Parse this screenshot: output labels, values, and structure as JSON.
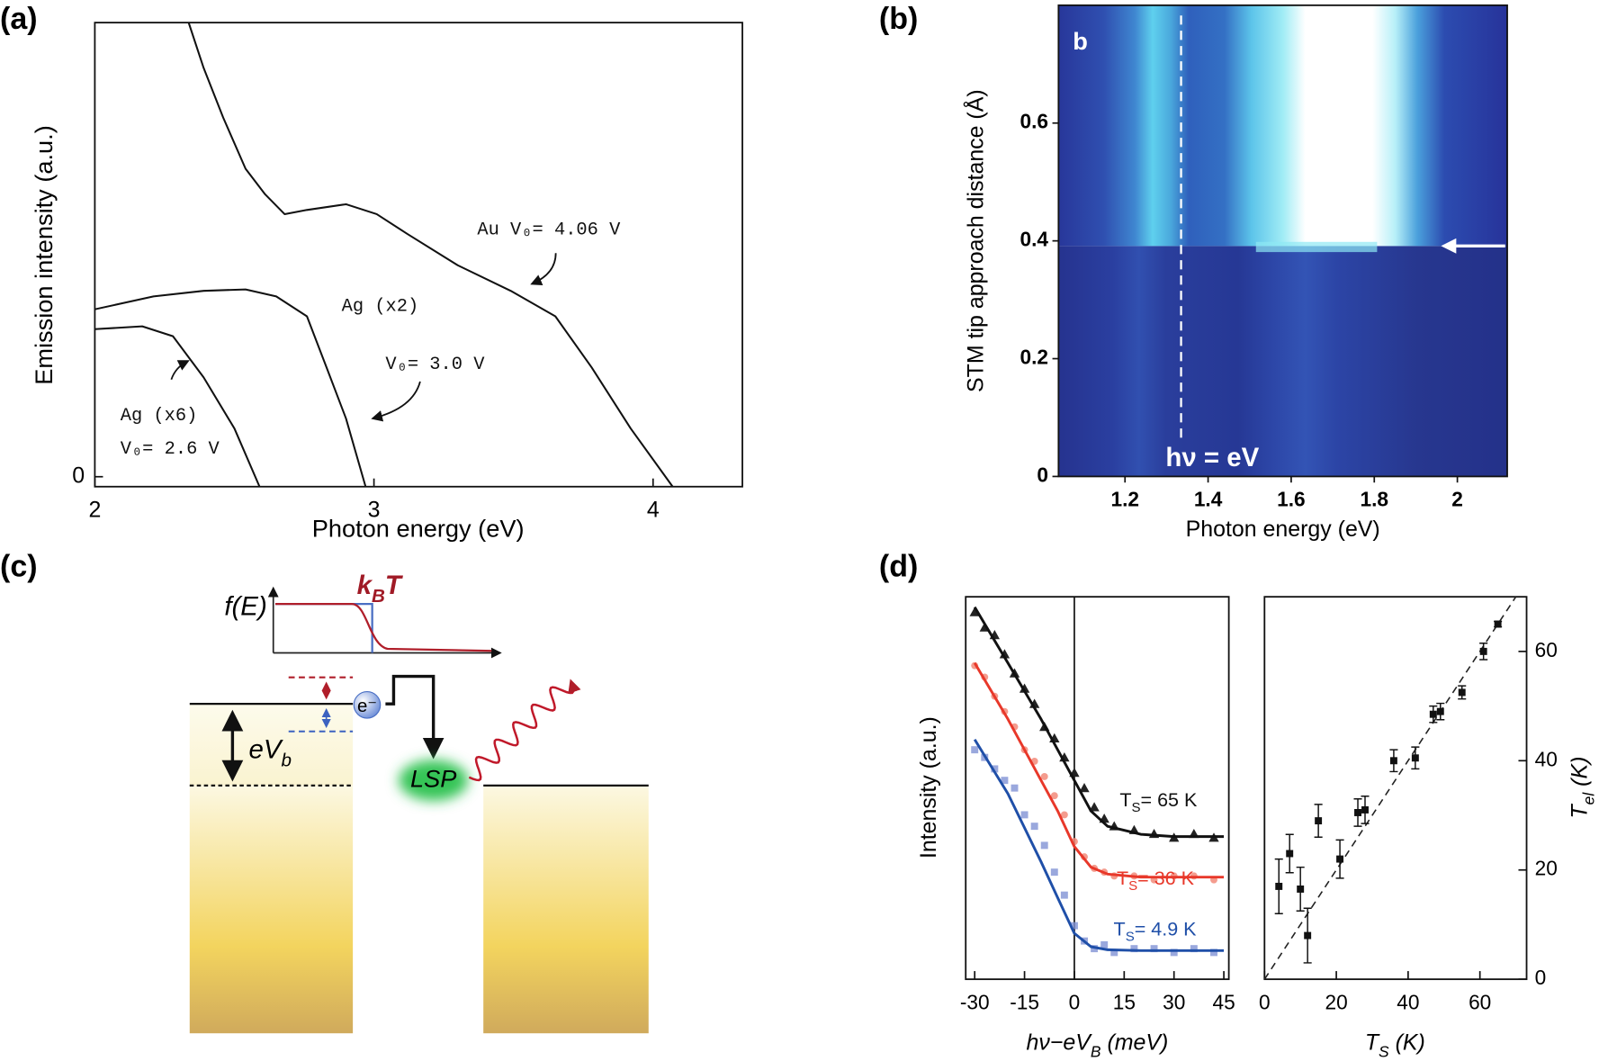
{
  "panel_labels": [
    "(a)",
    "(b)",
    "(c)",
    "(d)"
  ],
  "chart_data": [
    {
      "type": "line",
      "xlabel": "Photon energy (eV)",
      "ylabel": "Emission intensity (a.u.)",
      "xlim": [
        2,
        4.32
      ],
      "xticks": [
        2,
        3,
        4
      ],
      "ylim": [
        -0.07,
        3.2
      ],
      "yticks": [
        0
      ],
      "annotations": [
        "Au  V₀= 4.06 V",
        "Ag (x2)",
        "V₀= 3.0 V",
        "Ag (x6)",
        "V₀= 2.6 V"
      ],
      "series": [
        {
          "color": "#111111",
          "x": [
            2.336,
            2.39,
            2.46,
            2.54,
            2.61,
            2.68,
            2.76,
            2.9,
            3.01,
            3.12,
            3.3,
            3.49,
            3.65,
            3.78,
            3.92,
            4.07
          ],
          "values": [
            3.2,
            2.88,
            2.53,
            2.17,
            1.99,
            1.85,
            1.88,
            1.92,
            1.85,
            1.71,
            1.49,
            1.31,
            1.13,
            0.77,
            0.34,
            -0.07
          ]
        },
        {
          "color": "#111111",
          "x": [
            2,
            2.21,
            2.39,
            2.54,
            2.65,
            2.76,
            2.83,
            2.9,
            2.97
          ],
          "values": [
            1.18,
            1.27,
            1.31,
            1.32,
            1.27,
            1.13,
            0.77,
            0.41,
            -0.07
          ]
        },
        {
          "color": "#111111",
          "x": [
            2,
            2.17,
            2.28,
            2.39,
            2.5,
            2.59
          ],
          "values": [
            1.04,
            1.06,
            0.99,
            0.7,
            0.34,
            -0.07
          ]
        }
      ]
    },
    {
      "type": "heatmap",
      "xlabel": "Photon energy (eV)",
      "ylabel": "STM tip approach distance (Å)",
      "xlim": [
        1.04,
        2.12
      ],
      "xticks": [
        1.2,
        1.4,
        1.6,
        1.8,
        2
      ],
      "ylim": [
        0,
        0.8
      ],
      "yticks": [
        0,
        0.2,
        0.4,
        0.6
      ],
      "vline_x": 1.335,
      "annotations": [
        "b",
        "hν = eV"
      ]
    },
    {
      "type": "line",
      "xlabel": [
        "hν−eV",
        "B",
        " (meV)"
      ],
      "ylabel": "Intensity (a.u.)",
      "xlim": [
        -32.7,
        46.5
      ],
      "xticks": [
        -30,
        -15,
        0,
        15,
        30,
        45
      ],
      "ylim": [
        0,
        1
      ],
      "vline_x": 0,
      "annotations": [
        [
          "T",
          "S",
          "= 65 K"
        ],
        [
          "T",
          "S",
          "= 36 K"
        ],
        [
          "T",
          "S",
          "= 4.9 K"
        ]
      ],
      "series": [
        {
          "color": "#222222",
          "marker": "triangle",
          "x": [
            -30,
            -27,
            -24,
            -21,
            -18,
            -15,
            -12,
            -9,
            -6,
            -3,
            0,
            3,
            6,
            9,
            12,
            18,
            24,
            30,
            36,
            42
          ],
          "values": [
            0.96,
            0.92,
            0.9,
            0.85,
            0.8,
            0.76,
            0.72,
            0.66,
            0.63,
            0.58,
            0.54,
            0.5,
            0.45,
            0.42,
            0.4,
            0.39,
            0.38,
            0.37,
            0.38,
            0.37
          ]
        },
        {
          "color": "#f28b7a",
          "marker": "circle",
          "x": [
            -30,
            -27,
            -24,
            -21,
            -18,
            -15,
            -12,
            -9,
            -6,
            -3,
            0,
            3,
            6,
            9,
            12,
            18,
            24,
            30,
            36,
            42
          ],
          "values": [
            0.82,
            0.79,
            0.74,
            0.7,
            0.66,
            0.6,
            0.57,
            0.53,
            0.48,
            0.43,
            0.36,
            0.32,
            0.29,
            0.28,
            0.27,
            0.27,
            0.26,
            0.27,
            0.27,
            0.26
          ]
        },
        {
          "color": "#8192d4",
          "marker": "square",
          "x": [
            -30,
            -27,
            -24,
            -21,
            -18,
            -15,
            -12,
            -9,
            -6,
            -3,
            0,
            3,
            6,
            9,
            12,
            18,
            24,
            30,
            36,
            42
          ],
          "values": [
            0.6,
            0.58,
            0.55,
            0.52,
            0.5,
            0.43,
            0.4,
            0.35,
            0.28,
            0.22,
            0.14,
            0.1,
            0.08,
            0.09,
            0.07,
            0.08,
            0.08,
            0.07,
            0.08,
            0.07
          ]
        },
        {
          "color": "#111111",
          "x": [
            -30,
            -20,
            -10,
            -5,
            0,
            5,
            10,
            20,
            30,
            45
          ],
          "values": [
            0.973,
            0.827,
            0.68,
            0.6,
            0.52,
            0.44,
            0.4,
            0.379,
            0.373,
            0.373
          ]
        },
        {
          "color": "#e8382a",
          "x": [
            -30,
            -20,
            -10,
            -5,
            0,
            5,
            10,
            20,
            30,
            45
          ],
          "values": [
            0.827,
            0.68,
            0.52,
            0.44,
            0.347,
            0.293,
            0.275,
            0.267,
            0.267,
            0.267
          ]
        },
        {
          "color": "#1f4fa8",
          "x": [
            -30,
            -20,
            -10,
            -5,
            0,
            5,
            10,
            20,
            30,
            45
          ],
          "values": [
            0.627,
            0.485,
            0.307,
            0.213,
            0.12,
            0.085,
            0.077,
            0.075,
            0.075,
            0.075
          ]
        }
      ]
    },
    {
      "type": "scatter",
      "xlabel": [
        "T",
        "S",
        " (K)"
      ],
      "ylabel": [
        "T",
        "el",
        " (K)"
      ],
      "xlim": [
        0,
        73
      ],
      "xticks": [
        0,
        20,
        40,
        60
      ],
      "ylim": [
        0,
        70
      ],
      "yticks": [
        0,
        20,
        40,
        60
      ],
      "yaxis_side": "right",
      "identity_line": true,
      "series": [
        {
          "color": "#111111",
          "marker": "square",
          "x": [
            4,
            7,
            10,
            12,
            15,
            21,
            26,
            28,
            36,
            42,
            47,
            49,
            55,
            61,
            65
          ],
          "values": [
            17,
            23,
            16.5,
            8,
            29,
            22,
            30.5,
            31,
            40,
            40.5,
            48.5,
            49,
            52.5,
            60,
            65
          ],
          "errors": [
            5,
            3.5,
            4,
            5,
            3,
            3.5,
            2.5,
            2.5,
            2,
            2,
            1.5,
            1.5,
            1.2,
            1.5,
            0.5
          ]
        }
      ]
    }
  ],
  "diagram": {
    "fermi_label": "f(E)",
    "thermal_label": [
      "k",
      "B",
      "T"
    ],
    "bias_label": [
      "eV",
      "b"
    ],
    "electron_label": "e⁻",
    "plasmon_label": "LSP"
  }
}
